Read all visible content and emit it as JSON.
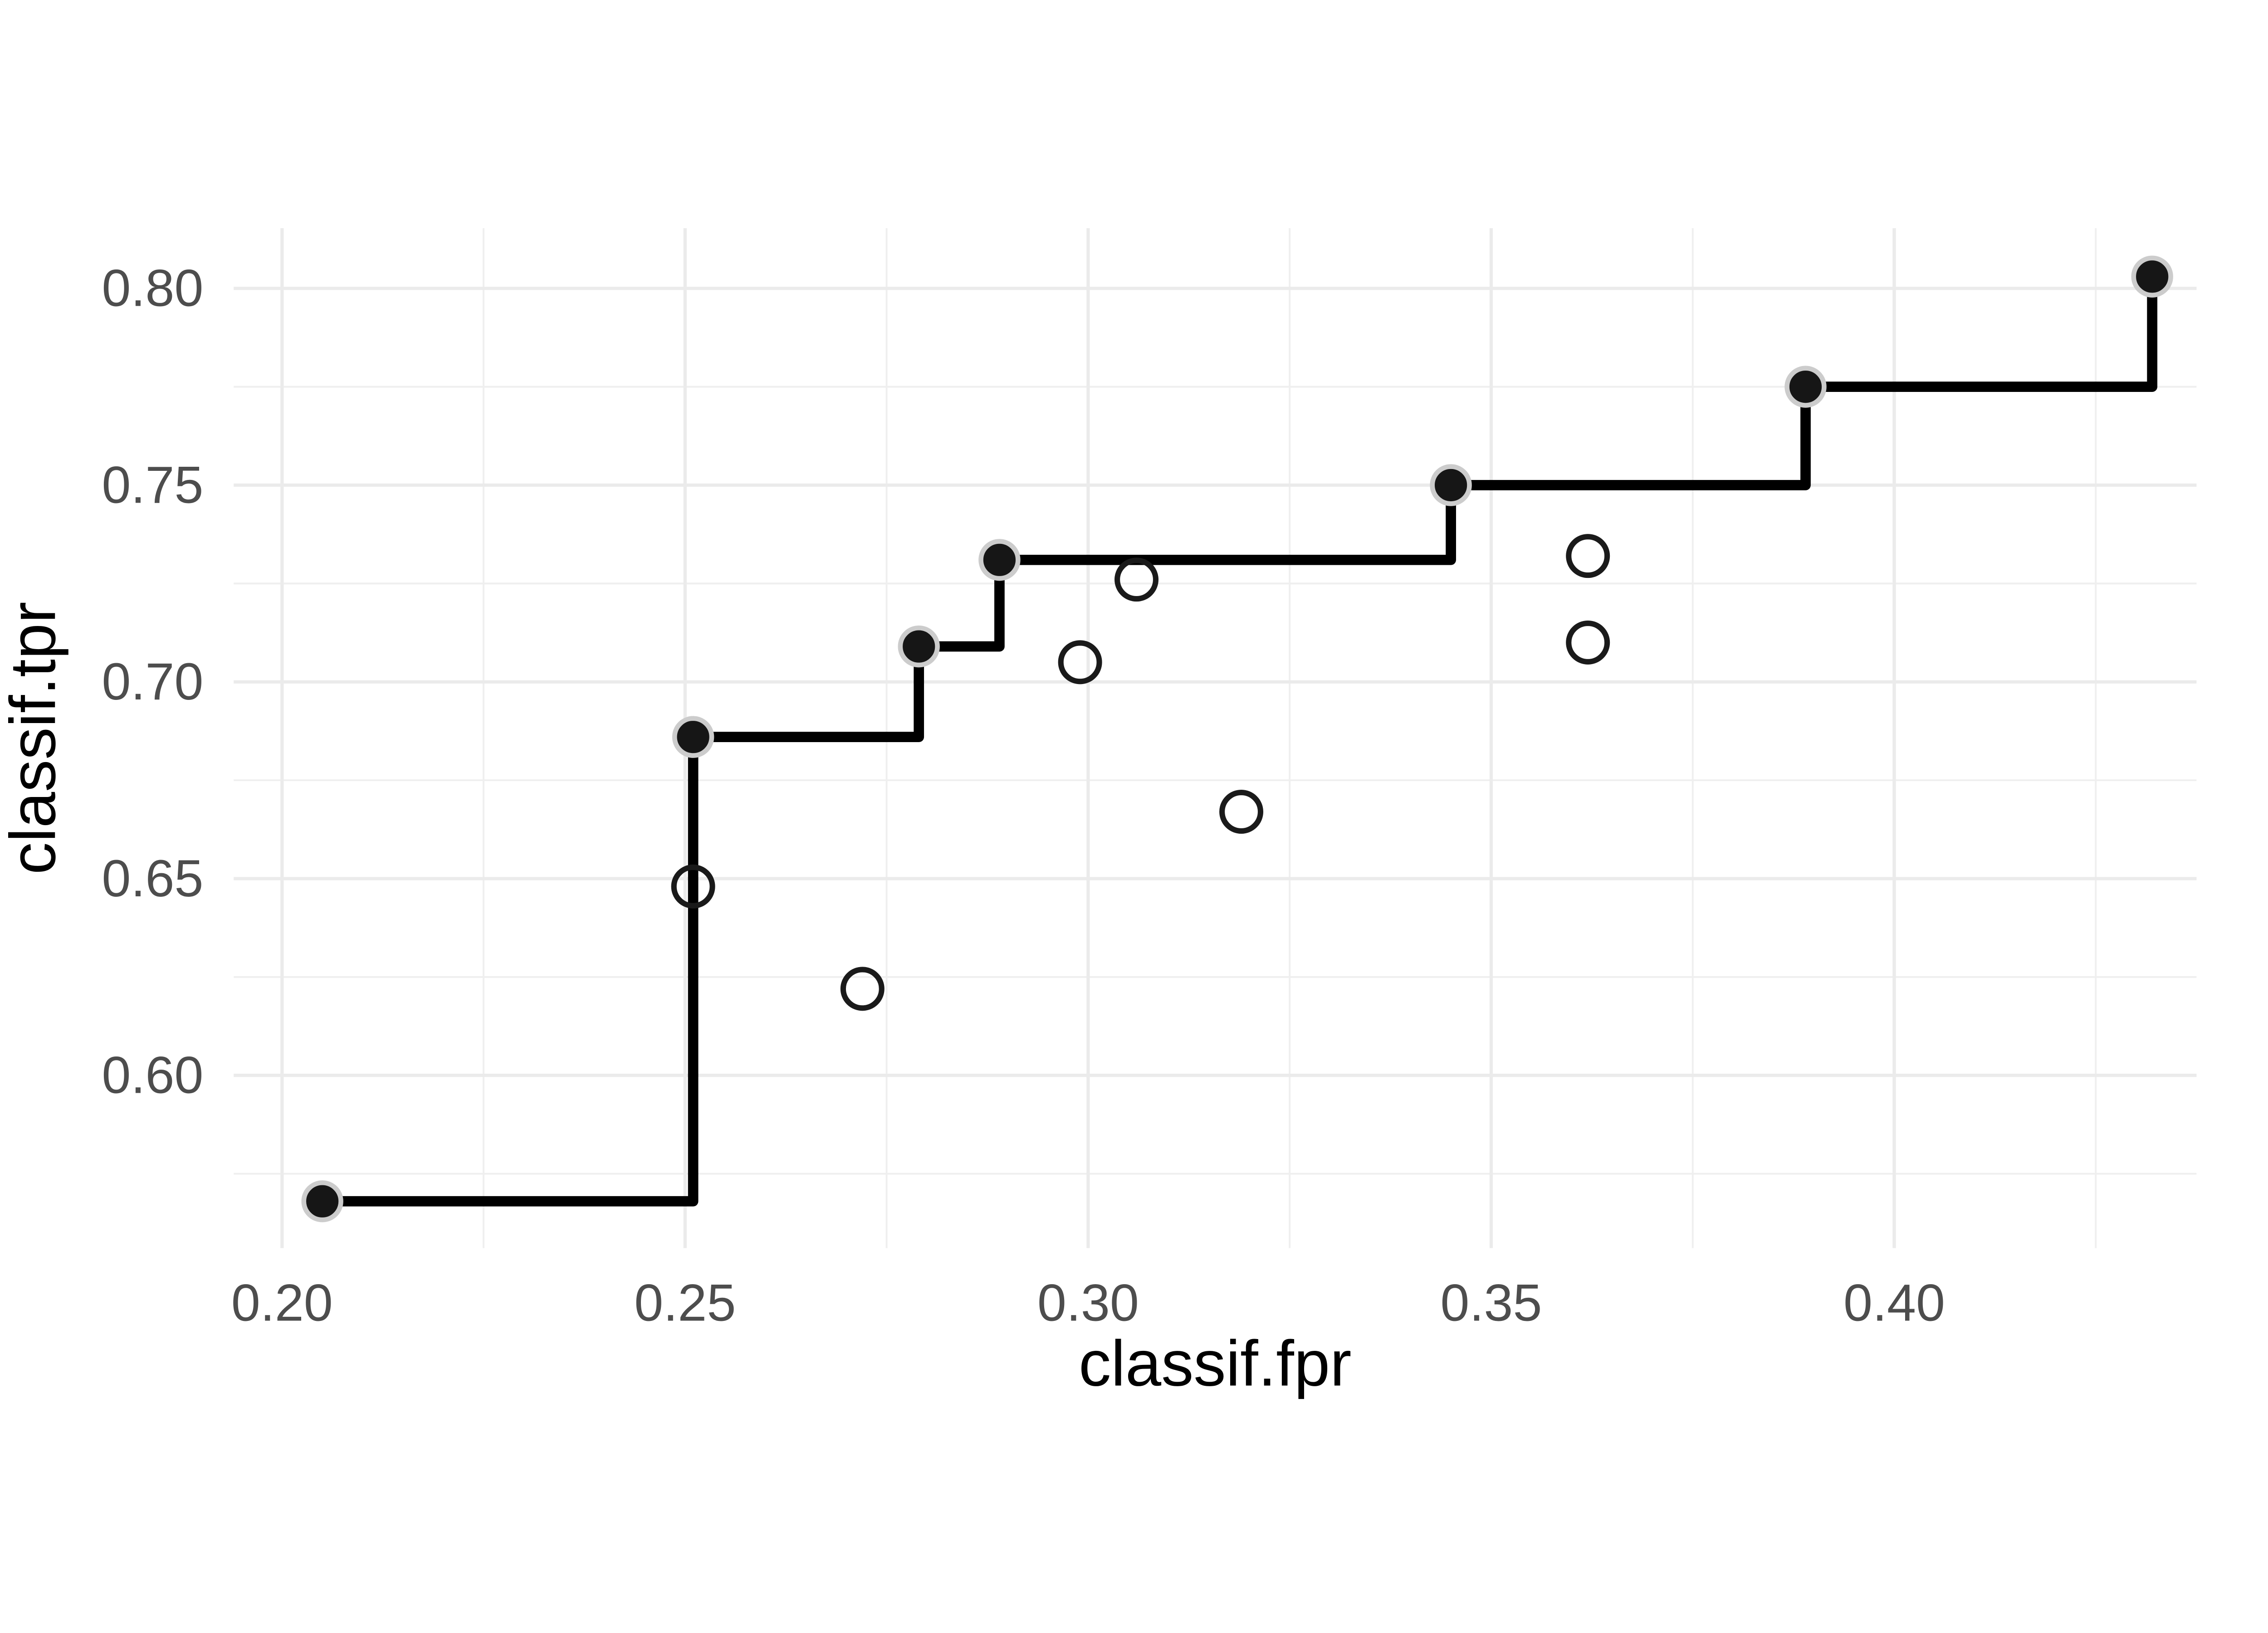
{
  "chart_data": {
    "type": "scatter",
    "title": "",
    "xlabel": "classif.fpr",
    "ylabel": "classif.tpr",
    "xlim": [
      0.194,
      0.4375
    ],
    "ylim": [
      0.5561,
      0.8153
    ],
    "grid": "on",
    "legend_position": "none",
    "background": "#ffffff",
    "x_ticks": {
      "values": [
        0.2,
        0.25,
        0.3,
        0.35,
        0.4
      ],
      "labels": [
        "0.20",
        "0.25",
        "0.30",
        "0.35",
        "0.40"
      ]
    },
    "x_minor_gridlines": [
      0.225,
      0.275,
      0.325,
      0.375,
      0.425
    ],
    "y_ticks": {
      "values": [
        0.8,
        0.75,
        0.7,
        0.65,
        0.6
      ],
      "labels": [
        "0.80",
        "0.75",
        "0.70",
        "0.65",
        "0.60"
      ]
    },
    "y_minor_gridlines": [
      0.775,
      0.725,
      0.675,
      0.625,
      0.575
    ],
    "series": [
      {
        "name": "pareto_front_step_line",
        "type": "step",
        "color": "#000000",
        "points": [
          [
            0.205,
            0.568
          ],
          [
            0.251,
            0.686
          ],
          [
            0.279,
            0.709
          ],
          [
            0.289,
            0.731
          ],
          [
            0.345,
            0.75
          ],
          [
            0.389,
            0.775
          ],
          [
            0.432,
            0.803
          ]
        ]
      },
      {
        "name": "pareto_front_points",
        "type": "filled-point",
        "fill": "#161616",
        "halo_stroke": "#cccccc",
        "points": [
          [
            0.205,
            0.568
          ],
          [
            0.251,
            0.686
          ],
          [
            0.279,
            0.709
          ],
          [
            0.289,
            0.731
          ],
          [
            0.345,
            0.75
          ],
          [
            0.389,
            0.775
          ],
          [
            0.432,
            0.803
          ]
        ]
      },
      {
        "name": "dominated_points",
        "type": "open-point",
        "stroke": "#1a1a1a",
        "points": [
          [
            0.251,
            0.648
          ],
          [
            0.272,
            0.622
          ],
          [
            0.299,
            0.705
          ],
          [
            0.306,
            0.726
          ],
          [
            0.319,
            0.667
          ],
          [
            0.362,
            0.732
          ],
          [
            0.362,
            0.71
          ]
        ]
      }
    ],
    "colors": {
      "grid_major": "#ebebeb",
      "grid_minor": "#efefef",
      "axis_text": "#4d4d4d",
      "axis_title": "#000000",
      "step_line": "#000000"
    }
  }
}
